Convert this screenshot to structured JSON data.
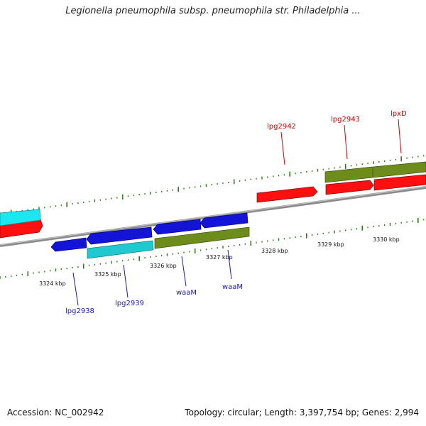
{
  "title": "Legionella pneumophila subsp. pneumophila str. Philadelphia ...",
  "footer": {
    "accession": "Accession: NC_002942",
    "stats": "Topology: circular; Length: 3,397,754 bp; Genes: 2,994"
  },
  "colors": {
    "backbone": "#8a8a8a",
    "tick": "#2e7d1a",
    "forward_label": "#cc0000",
    "reverse_label": "#1a1aaa",
    "red_gene": "#ff1010",
    "blue_gene": "#1414d8",
    "cyan_gene": "#20c8d0",
    "olive_gene": "#6e8c1c",
    "bright_cyan_gene": "#19e8f0"
  },
  "scale_labels": [
    "3324 kbp",
    "3325 kbp",
    "3326 kbp",
    "3327 kbp",
    "3328 kbp",
    "3329 kbp",
    "3330 kbp"
  ],
  "gene_labels": {
    "forward": [
      "lpg2942",
      "lpg2943",
      "lpxD"
    ],
    "reverse": [
      "lpg2938",
      "lpg2939",
      "waaM",
      "waaM"
    ]
  }
}
